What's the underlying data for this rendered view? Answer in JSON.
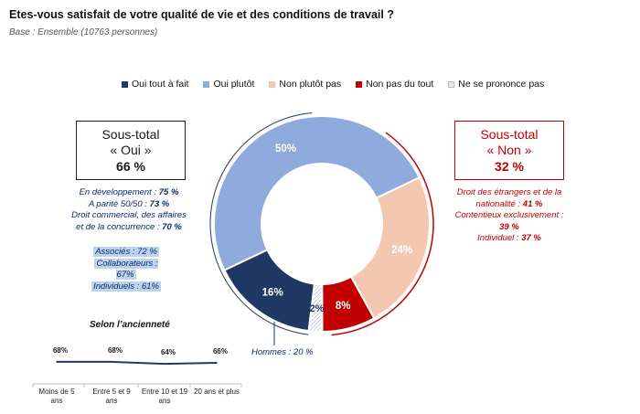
{
  "header": {
    "title": "Etes-vous satisfait de votre qualité de vie et des conditions de travail ?",
    "subtitle": "Base : Ensemble (10763 personnes)"
  },
  "colors": {
    "oui_tout_a_fait": "#1f3864",
    "oui_plutot": "#8faadc",
    "non_plutot_pas": "#f4c7b0",
    "non_pas_du_tout": "#c00000",
    "ne_se_prononce_pas": "#ffffff"
  },
  "legend": [
    {
      "label": "Oui tout à fait",
      "color": "#1f3864"
    },
    {
      "label": "Oui plutôt",
      "color": "#8faadc"
    },
    {
      "label": "Non plutôt pas",
      "color": "#f4c7b0"
    },
    {
      "label": "Non pas du tout",
      "color": "#c00000"
    },
    {
      "label": "Ne se prononce pas",
      "color": "#e8e8e8"
    }
  ],
  "oui_box": {
    "line1": "Sous-total",
    "line2": "« Oui »",
    "value": "66 %"
  },
  "non_box": {
    "line1": "Sous-total",
    "line2": "« Non »",
    "value": "32 %"
  },
  "oui_notes": [
    {
      "text": "En développement : ",
      "bold": "75 %"
    },
    {
      "text": "A parité 50/50 : ",
      "bold": "73 %"
    },
    {
      "text": "Droit commercial, des affaires",
      "bold": ""
    },
    {
      "text": "et de la concurrence : ",
      "bold": "70 %"
    }
  ],
  "oui_highlights": [
    "Associés : 72 %",
    "Collaborateurs : 67%",
    "Individuels : 61%"
  ],
  "non_notes": [
    {
      "text": "Droit des étrangers et de la",
      "bold": ""
    },
    {
      "text": "nationalité : ",
      "bold": "41 %"
    },
    {
      "text": "Contentieux exclusivement :",
      "bold": ""
    },
    {
      "text": "",
      "bold": "39 %"
    },
    {
      "text": "Individuel : ",
      "bold": "37 %"
    }
  ],
  "hommes_note": "Hommes : 20 %",
  "anciennete": {
    "title": "Selon l’ancienneté",
    "categories": [
      "Moins de 5 ans",
      "Entre 5 et 9 ans",
      "Entre 10 et 19 ans",
      "20 ans et plus"
    ],
    "value_labels": [
      "68%",
      "68%",
      "64%",
      "66%"
    ]
  },
  "chart_data": [
    {
      "type": "pie",
      "subtype": "donut",
      "categories": [
        "Oui tout à fait",
        "Oui plutôt",
        "Non plutôt pas",
        "Non pas du tout",
        "Ne se prononce pas"
      ],
      "values": [
        16,
        50,
        24,
        8,
        2
      ],
      "data_labels": [
        "16%",
        "50%",
        "24%",
        "8%",
        "2%"
      ],
      "legend_position": "top"
    },
    {
      "type": "line",
      "title": "Selon l’ancienneté",
      "categories": [
        "Moins de 5 ans",
        "Entre 5 et 9 ans",
        "Entre 10 et 19 ans",
        "20 ans et plus"
      ],
      "values": [
        68,
        68,
        64,
        66
      ],
      "data_labels": [
        "68%",
        "68%",
        "64%",
        "66%"
      ],
      "ylim": [
        0,
        100
      ]
    }
  ]
}
